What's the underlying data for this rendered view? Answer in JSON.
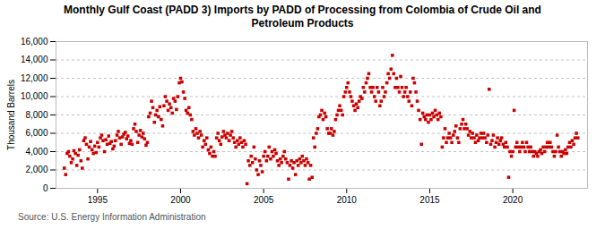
{
  "chart_data": {
    "type": "scatter",
    "title": "Monthly Gulf Coast (PADD 3) Imports by PADD of Processing from Colombia of Crude Oil and\nPetroleum Products",
    "ylabel": "Thousand Barrels",
    "annotations": [
      "Source: U.S. Energy Information Administration"
    ],
    "color": "#CC0000",
    "marker": "square",
    "grid": true,
    "xlim": [
      1992.5,
      2024.5
    ],
    "xticks": [
      1995,
      2000,
      2005,
      2010,
      2015,
      2020
    ],
    "ylim": [
      0,
      16000
    ],
    "yticks": [
      0,
      {
        "value": 2000,
        "label": "2,000"
      },
      {
        "value": 4000,
        "label": "4,000"
      },
      {
        "value": 6000,
        "label": "6,000"
      },
      {
        "value": 8000,
        "label": "8,000"
      },
      {
        "value": 10000,
        "label": "10,000"
      },
      {
        "value": 12000,
        "label": "12,000"
      },
      {
        "value": 14000,
        "label": "14,000"
      },
      {
        "value": 16000,
        "label": "16,000"
      }
    ],
    "x": [
      1993.0,
      1993.08,
      1993.17,
      1993.25,
      1993.33,
      1993.42,
      1993.5,
      1993.58,
      1993.67,
      1993.75,
      1993.83,
      1993.92,
      1994.0,
      1994.08,
      1994.17,
      1994.25,
      1994.33,
      1994.42,
      1994.5,
      1994.58,
      1994.67,
      1994.75,
      1994.83,
      1994.92,
      1995.0,
      1995.08,
      1995.17,
      1995.25,
      1995.33,
      1995.42,
      1995.5,
      1995.58,
      1995.67,
      1995.75,
      1995.83,
      1995.92,
      1996.0,
      1996.08,
      1996.17,
      1996.25,
      1996.33,
      1996.42,
      1996.5,
      1996.58,
      1996.67,
      1996.75,
      1996.83,
      1996.92,
      1997.0,
      1997.08,
      1997.17,
      1997.25,
      1997.33,
      1997.42,
      1997.5,
      1997.58,
      1997.67,
      1997.75,
      1997.83,
      1997.92,
      1998.0,
      1998.08,
      1998.17,
      1998.25,
      1998.33,
      1998.42,
      1998.5,
      1998.58,
      1998.67,
      1998.75,
      1998.83,
      1998.92,
      1999.0,
      1999.08,
      1999.17,
      1999.25,
      1999.33,
      1999.42,
      1999.5,
      1999.58,
      1999.67,
      1999.75,
      1999.83,
      1999.92,
      2000.0,
      2000.08,
      2000.17,
      2000.25,
      2000.33,
      2000.42,
      2000.5,
      2000.58,
      2000.67,
      2000.75,
      2000.83,
      2000.92,
      2001.0,
      2001.08,
      2001.17,
      2001.25,
      2001.33,
      2001.42,
      2001.5,
      2001.58,
      2001.67,
      2001.75,
      2001.83,
      2001.92,
      2002.0,
      2002.08,
      2002.17,
      2002.25,
      2002.33,
      2002.42,
      2002.5,
      2002.58,
      2002.67,
      2002.75,
      2002.83,
      2002.92,
      2003.0,
      2003.08,
      2003.17,
      2003.25,
      2003.33,
      2003.42,
      2003.5,
      2003.58,
      2003.67,
      2003.75,
      2003.83,
      2003.92,
      2004.0,
      2004.08,
      2004.17,
      2004.25,
      2004.33,
      2004.42,
      2004.5,
      2004.58,
      2004.67,
      2004.75,
      2004.83,
      2004.92,
      2005.0,
      2005.08,
      2005.17,
      2005.25,
      2005.33,
      2005.42,
      2005.5,
      2005.58,
      2005.67,
      2005.75,
      2005.83,
      2005.92,
      2006.0,
      2006.08,
      2006.17,
      2006.25,
      2006.33,
      2006.42,
      2006.5,
      2006.58,
      2006.67,
      2006.75,
      2006.83,
      2006.92,
      2007.0,
      2007.08,
      2007.17,
      2007.25,
      2007.33,
      2007.42,
      2007.5,
      2007.58,
      2007.67,
      2007.75,
      2007.83,
      2007.92,
      2008.0,
      2008.08,
      2008.17,
      2008.25,
      2008.33,
      2008.42,
      2008.5,
      2008.58,
      2008.67,
      2008.75,
      2008.83,
      2008.92,
      2009.0,
      2009.08,
      2009.17,
      2009.25,
      2009.33,
      2009.42,
      2009.5,
      2009.58,
      2009.67,
      2009.75,
      2009.83,
      2009.92,
      2010.0,
      2010.08,
      2010.17,
      2010.25,
      2010.33,
      2010.42,
      2010.5,
      2010.58,
      2010.67,
      2010.75,
      2010.83,
      2010.92,
      2011.0,
      2011.08,
      2011.17,
      2011.25,
      2011.33,
      2011.42,
      2011.5,
      2011.58,
      2011.67,
      2011.75,
      2011.83,
      2011.92,
      2012.0,
      2012.08,
      2012.17,
      2012.25,
      2012.33,
      2012.42,
      2012.5,
      2012.58,
      2012.67,
      2012.75,
      2012.83,
      2012.92,
      2013.0,
      2013.08,
      2013.17,
      2013.25,
      2013.33,
      2013.42,
      2013.5,
      2013.58,
      2013.67,
      2013.75,
      2013.83,
      2013.92,
      2014.0,
      2014.08,
      2014.17,
      2014.25,
      2014.33,
      2014.42,
      2014.5,
      2014.58,
      2014.67,
      2014.75,
      2014.83,
      2014.92,
      2015.0,
      2015.08,
      2015.17,
      2015.25,
      2015.33,
      2015.42,
      2015.5,
      2015.58,
      2015.67,
      2015.75,
      2015.83,
      2015.92,
      2016.0,
      2016.08,
      2016.17,
      2016.25,
      2016.33,
      2016.42,
      2016.5,
      2016.58,
      2016.67,
      2016.75,
      2016.83,
      2016.92,
      2017.0,
      2017.08,
      2017.17,
      2017.25,
      2017.33,
      2017.42,
      2017.5,
      2017.58,
      2017.67,
      2017.75,
      2017.83,
      2017.92,
      2018.0,
      2018.08,
      2018.17,
      2018.25,
      2018.33,
      2018.42,
      2018.5,
      2018.58,
      2018.67,
      2018.75,
      2018.83,
      2018.92,
      2019.0,
      2019.08,
      2019.17,
      2019.25,
      2019.33,
      2019.42,
      2019.5,
      2019.58,
      2019.67,
      2019.75,
      2019.83,
      2019.92,
      2020.0,
      2020.08,
      2020.17,
      2020.25,
      2020.33,
      2020.42,
      2020.5,
      2020.58,
      2020.67,
      2020.75,
      2020.83,
      2020.92,
      2021.0,
      2021.08,
      2021.17,
      2021.25,
      2021.33,
      2021.42,
      2021.5,
      2021.58,
      2021.67,
      2021.75,
      2021.83,
      2021.92,
      2022.0,
      2022.08,
      2022.17,
      2022.25,
      2022.33,
      2022.42,
      2022.5,
      2022.58,
      2022.67,
      2022.75,
      2022.83,
      2022.92,
      2023.0,
      2023.08,
      2023.17,
      2023.25,
      2023.33,
      2023.42,
      2023.5,
      2023.58,
      2023.67,
      2023.75,
      2023.83,
      2023.92
    ],
    "values": [
      2200,
      1500,
      3800,
      4000,
      3500,
      2800,
      3200,
      4100,
      3800,
      2500,
      3600,
      4200,
      3000,
      2200,
      5200,
      5500,
      4800,
      3200,
      4500,
      5100,
      4200,
      3800,
      4600,
      3900,
      5000,
      4500,
      5500,
      5800,
      5200,
      4000,
      5300,
      4800,
      5700,
      4900,
      5100,
      4300,
      4600,
      5200,
      5800,
      6200,
      5500,
      4800,
      5600,
      5900,
      6100,
      5400,
      5700,
      4900,
      5200,
      4800,
      6500,
      7000,
      6200,
      5000,
      5800,
      6300,
      5600,
      6000,
      5400,
      4700,
      5000,
      7800,
      8200,
      9500,
      8800,
      7200,
      8000,
      8500,
      7800,
      8900,
      7500,
      6800,
      9000,
      10000,
      9500,
      8500,
      9200,
      8800,
      8200,
      9800,
      9500,
      8600,
      10000,
      11500,
      12000,
      11600,
      10500,
      9800,
      8500,
      8200,
      8800,
      8000,
      7500,
      6200,
      5800,
      6500,
      6000,
      5500,
      6200,
      5800,
      4500,
      5200,
      4800,
      5500,
      4200,
      3800,
      4500,
      3500,
      4000,
      3500,
      5500,
      6000,
      5200,
      4800,
      5600,
      6200,
      5800,
      5500,
      6000,
      5200,
      5800,
      6200,
      5500,
      5000,
      4500,
      5200,
      4800,
      5500,
      5000,
      4500,
      5200,
      4800,
      500,
      3000,
      2500,
      3500,
      2800,
      4500,
      3200,
      2000,
      1500,
      3000,
      2500,
      1800,
      3500,
      4000,
      3000,
      3500,
      4500,
      3200,
      4000,
      3500,
      4200,
      3800,
      3000,
      2500,
      3200,
      2800,
      3500,
      4000,
      3200,
      2800,
      1000,
      2500,
      3000,
      2200,
      2800,
      1500,
      3000,
      2500,
      3200,
      2800,
      3500,
      3000,
      2500,
      3200,
      2800,
      1000,
      2500,
      1200,
      5500,
      4500,
      6000,
      6500,
      7800,
      8000,
      8500,
      7500,
      8200,
      7800,
      6500,
      6000,
      6000,
      6500,
      5800,
      6200,
      7500,
      8000,
      8500,
      9000,
      8500,
      8000,
      10000,
      10500,
      11000,
      11500,
      10500,
      10000,
      9500,
      9000,
      8500,
      9200,
      8800,
      9500,
      10000,
      9800,
      11000,
      10500,
      11500,
      12000,
      12500,
      11000,
      10500,
      11000,
      10000,
      9500,
      11000,
      10500,
      9000,
      9500,
      11000,
      10000,
      10500,
      11500,
      12500,
      12000,
      13000,
      14500,
      12500,
      11000,
      12000,
      11000,
      10500,
      12200,
      11000,
      10000,
      10500,
      11000,
      10000,
      9500,
      10500,
      9000,
      12000,
      11500,
      10500,
      9500,
      8500,
      7500,
      4800,
      8200,
      7800,
      7500,
      8000,
      7200,
      8000,
      7500,
      8200,
      7800,
      8500,
      8000,
      7500,
      8200,
      7800,
      4500,
      5500,
      6500,
      5000,
      5500,
      6000,
      5500,
      5000,
      5800,
      6200,
      6800,
      5500,
      5000,
      6500,
      7000,
      7500,
      6500,
      7000,
      6500,
      5800,
      6200,
      5500,
      6000,
      5500,
      5000,
      5800,
      5200,
      5500,
      6000,
      5500,
      6000,
      5500,
      5000,
      5800,
      10800,
      4800,
      5200,
      5800,
      4500,
      5000,
      5500,
      4800,
      5200,
      5500,
      4800,
      4500,
      5000,
      4500,
      1200,
      4000,
      3500,
      4000,
      8500,
      4500,
      5000,
      4500,
      4000,
      4500,
      5000,
      4500,
      4000,
      5000,
      4500,
      4000,
      4500,
      4000,
      3500,
      4000,
      3800,
      3500,
      4000,
      4200,
      3800,
      4500,
      4000,
      4500,
      5000,
      4500,
      5000,
      4500,
      4000,
      3500,
      4000,
      5800,
      4500,
      4000,
      3500,
      4000,
      3800,
      4200,
      3800,
      4500,
      5000,
      4500,
      5200,
      4800,
      5500,
      6000,
      5500
    ]
  }
}
